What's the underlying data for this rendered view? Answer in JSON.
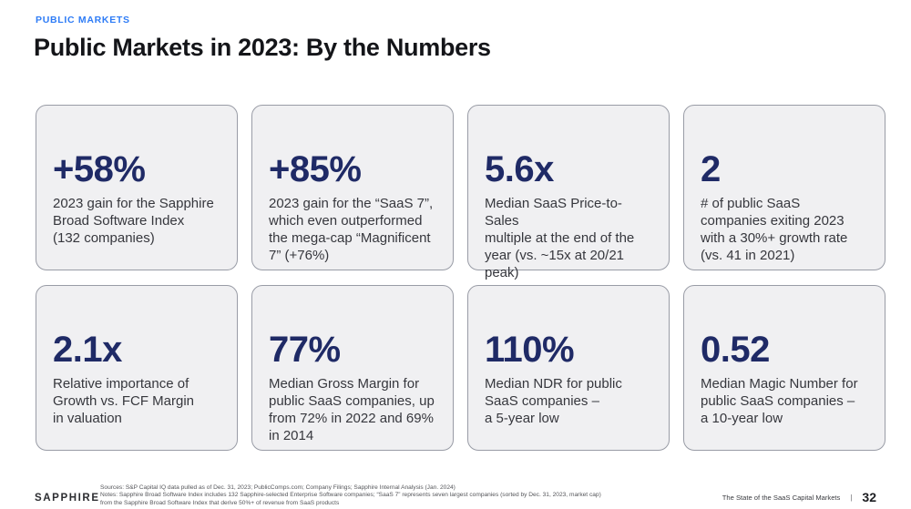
{
  "header": {
    "eyebrow": "PUBLIC MARKETS",
    "title": "Public Markets in 2023: By the Numbers"
  },
  "cards": [
    {
      "value": "+58%",
      "description": "2023 gain for the Sapphire\nBroad Software Index\n(132 companies)"
    },
    {
      "value": "+85%",
      "description": "2023 gain for the “SaaS 7”,\nwhich even outperformed\nthe mega-cap “Magnificent\n7” (+76%)"
    },
    {
      "value": "5.6x",
      "description": "Median SaaS Price-to-Sales\nmultiple at the end of the\nyear (vs. ~15x at 20/21\npeak)"
    },
    {
      "value": "2",
      "description": "# of public SaaS\ncompanies exiting 2023\nwith a 30%+ growth rate\n(vs. 41 in 2021)"
    },
    {
      "value": "2.1x",
      "description": "Relative importance of\nGrowth vs. FCF Margin\nin valuation"
    },
    {
      "value": "77%",
      "description": "Median Gross Margin for\npublic SaaS companies, up\nfrom 72% in 2022 and 69%\nin 2014"
    },
    {
      "value": "110%",
      "description": "Median NDR for public\nSaaS companies –\na 5-year low"
    },
    {
      "value": "0.52",
      "description": "Median Magic Number for\npublic SaaS companies –\na 10-year low"
    }
  ],
  "footer": {
    "logo": "SAPPHIRE",
    "sources": "Sources: S&P Capital IQ data pulled as of Dec. 31, 2023; PublicComps.com; Company Filings; Sapphire Internal Analysis (Jan. 2024)",
    "notes": "Notes: Sapphire Broad Software Index includes 132 Sapphire-selected Enterprise Software companies; “SaaS 7” represents seven largest companies (sorted by Dec. 31, 2023, market cap)",
    "notes_continued": "from the Sapphire Broad Software Index that derive 50%+ of revenue from SaaS products",
    "report_title": "The State of the SaaS Capital Markets",
    "separator": "|",
    "page_number": "32"
  },
  "colors": {
    "accent_blue": "#2e7cf6",
    "stat_navy": "#1f2a66",
    "card_bg": "#f0f0f2",
    "card_border": "#999ca6"
  }
}
